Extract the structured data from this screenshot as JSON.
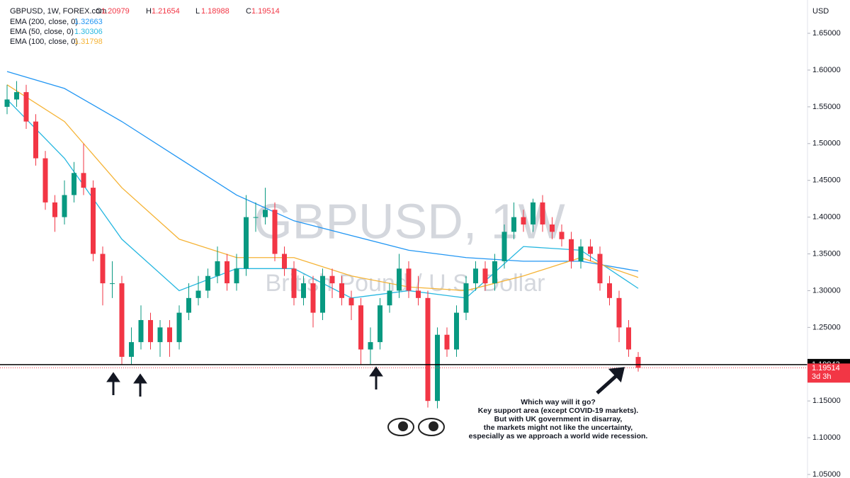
{
  "chart_data": {
    "type": "candlestick",
    "title": "GBPUSD, 1W",
    "subtitle": "British Pound / U.S. Dollar",
    "symbol": "GBPUSD, 1W, FOREX.com",
    "ohlc_labels": [
      "O",
      "H",
      "L",
      "C"
    ],
    "open": [
      1.55,
      1.56,
      1.57,
      1.53,
      1.48,
      1.42,
      1.4,
      1.43,
      1.46,
      1.44,
      1.35,
      1.31,
      1.31,
      1.21,
      1.23,
      1.26,
      1.23,
      1.25,
      1.23,
      1.27,
      1.29,
      1.3,
      1.32,
      1.34,
      1.31,
      1.33,
      1.4,
      1.4,
      1.41,
      1.35,
      1.33,
      1.29,
      1.31,
      1.27,
      1.32,
      1.31,
      1.29,
      1.28,
      1.22,
      1.23,
      1.28,
      1.3,
      1.33,
      1.3,
      1.29,
      1.15,
      1.24,
      1.22,
      1.27,
      1.31,
      1.33,
      1.31,
      1.34,
      1.38,
      1.4,
      1.39,
      1.42,
      1.39,
      1.38,
      1.37,
      1.34,
      1.36,
      1.35,
      1.31,
      1.29,
      1.25,
      1.20979
    ],
    "high": [
      1.58,
      1.585,
      1.58,
      1.54,
      1.49,
      1.43,
      1.45,
      1.475,
      1.5,
      1.45,
      1.36,
      1.34,
      1.32,
      1.25,
      1.28,
      1.27,
      1.26,
      1.26,
      1.28,
      1.31,
      1.32,
      1.33,
      1.36,
      1.35,
      1.35,
      1.43,
      1.42,
      1.44,
      1.42,
      1.36,
      1.34,
      1.32,
      1.32,
      1.33,
      1.33,
      1.32,
      1.3,
      1.29,
      1.25,
      1.29,
      1.31,
      1.35,
      1.34,
      1.32,
      1.3,
      1.25,
      1.25,
      1.28,
      1.32,
      1.34,
      1.34,
      1.35,
      1.39,
      1.42,
      1.41,
      1.425,
      1.43,
      1.4,
      1.39,
      1.38,
      1.37,
      1.37,
      1.36,
      1.32,
      1.3,
      1.26,
      1.21654
    ],
    "low": [
      1.54,
      1.55,
      1.52,
      1.47,
      1.41,
      1.38,
      1.39,
      1.42,
      1.43,
      1.34,
      1.28,
      1.29,
      1.2,
      1.2,
      1.22,
      1.22,
      1.21,
      1.21,
      1.22,
      1.26,
      1.28,
      1.29,
      1.31,
      1.3,
      1.3,
      1.32,
      1.38,
      1.39,
      1.34,
      1.32,
      1.28,
      1.28,
      1.25,
      1.26,
      1.29,
      1.28,
      1.26,
      1.2,
      1.2,
      1.22,
      1.27,
      1.29,
      1.29,
      1.28,
      1.141,
      1.14,
      1.21,
      1.21,
      1.26,
      1.3,
      1.3,
      1.3,
      1.33,
      1.37,
      1.38,
      1.38,
      1.38,
      1.37,
      1.36,
      1.33,
      1.33,
      1.34,
      1.3,
      1.28,
      1.23,
      1.21,
      1.18988
    ],
    "close": [
      1.56,
      1.57,
      1.53,
      1.48,
      1.42,
      1.4,
      1.43,
      1.46,
      1.44,
      1.35,
      1.31,
      1.31,
      1.21,
      1.23,
      1.26,
      1.23,
      1.25,
      1.23,
      1.27,
      1.29,
      1.3,
      1.32,
      1.34,
      1.31,
      1.33,
      1.4,
      1.4,
      1.41,
      1.35,
      1.33,
      1.29,
      1.31,
      1.27,
      1.32,
      1.31,
      1.29,
      1.28,
      1.22,
      1.23,
      1.28,
      1.3,
      1.33,
      1.3,
      1.29,
      1.15,
      1.24,
      1.22,
      1.27,
      1.31,
      1.33,
      1.31,
      1.34,
      1.38,
      1.4,
      1.39,
      1.42,
      1.39,
      1.38,
      1.37,
      1.34,
      1.36,
      1.35,
      1.31,
      1.29,
      1.25,
      1.22,
      1.19514
    ],
    "up_color": "#089981",
    "down_color": "#f23645",
    "series": [
      {
        "name": "EMA (200, close, 0)",
        "color": "#2196f3",
        "x": [
          0,
          6,
          12,
          18,
          24,
          30,
          36,
          42,
          48,
          54,
          60,
          66
        ],
        "values": [
          1.598,
          1.575,
          1.53,
          1.48,
          1.43,
          1.395,
          1.375,
          1.355,
          1.345,
          1.34,
          1.34,
          1.32663
        ]
      },
      {
        "name": "EMA (50, close, 0)",
        "color": "#26b7e0",
        "x": [
          0,
          6,
          12,
          18,
          24,
          30,
          36,
          42,
          48,
          54,
          60,
          66
        ],
        "values": [
          1.56,
          1.48,
          1.37,
          1.3,
          1.33,
          1.33,
          1.29,
          1.3,
          1.29,
          1.36,
          1.355,
          1.30306
        ]
      },
      {
        "name": "EMA (100, close, 0)",
        "color": "#f5b335",
        "x": [
          0,
          6,
          12,
          18,
          24,
          30,
          36,
          42,
          48,
          54,
          60,
          66
        ],
        "values": [
          1.58,
          1.53,
          1.44,
          1.37,
          1.345,
          1.345,
          1.32,
          1.305,
          1.3,
          1.32,
          1.345,
          1.31798
        ]
      }
    ],
    "ylim": [
      1.0452,
      1.6953
    ],
    "yticks": [
      {
        "value": 1.05,
        "label": "1.05000"
      },
      {
        "value": 1.1,
        "label": "1.10000"
      },
      {
        "value": 1.15,
        "label": "1.15000"
      },
      {
        "value": 1.2,
        "label": "1.20000"
      },
      {
        "value": 1.25,
        "label": "1.25000"
      },
      {
        "value": 1.3,
        "label": "1.30000"
      },
      {
        "value": 1.35,
        "label": "1.35000"
      },
      {
        "value": 1.4,
        "label": "1.40000"
      },
      {
        "value": 1.45,
        "label": "1.45000"
      },
      {
        "value": 1.5,
        "label": "1.50000"
      },
      {
        "value": 1.55,
        "label": "1.55000"
      },
      {
        "value": 1.6,
        "label": "1.60000"
      },
      {
        "value": 1.65,
        "label": "1.65000"
      }
    ],
    "y_unit": "USD",
    "hline": 1.19943,
    "countdown": "3d 3h",
    "annotation": [
      "Which way will it go?",
      "Key support area (except COVID-19 markets).",
      "But with UK government in disarray,",
      "the markets might not like the uncertainty,",
      "especially as we approach a world wide recession."
    ]
  }
}
